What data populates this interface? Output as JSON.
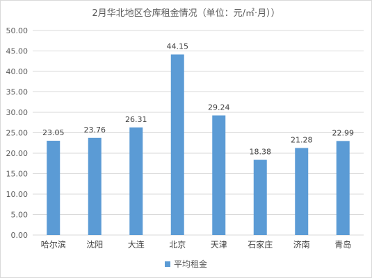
{
  "chart_data": {
    "type": "bar",
    "title": "2月华北地区仓库租金情况（单位：元/㎡·月））",
    "categories": [
      "哈尔滨",
      "沈阳",
      "大连",
      "北京",
      "天津",
      "石家庄",
      "济南",
      "青岛"
    ],
    "series": [
      {
        "name": "平均租金",
        "values": [
          23.05,
          23.76,
          26.31,
          44.15,
          29.24,
          18.38,
          21.28,
          22.99
        ]
      }
    ],
    "data_labels": [
      "23.05",
      "23.76",
      "26.31",
      "44.15",
      "29.24",
      "18.38",
      "21.28",
      "22.99"
    ],
    "y_ticks": [
      "0.00",
      "5.00",
      "10.00",
      "15.00",
      "20.00",
      "25.00",
      "30.00",
      "35.00",
      "40.00",
      "45.00",
      "50.00"
    ],
    "ylim": [
      0,
      50
    ],
    "grid": true,
    "legend_position": "bottom",
    "bar_color": "#5b9bd5",
    "grid_color": "#d9d9d9"
  }
}
